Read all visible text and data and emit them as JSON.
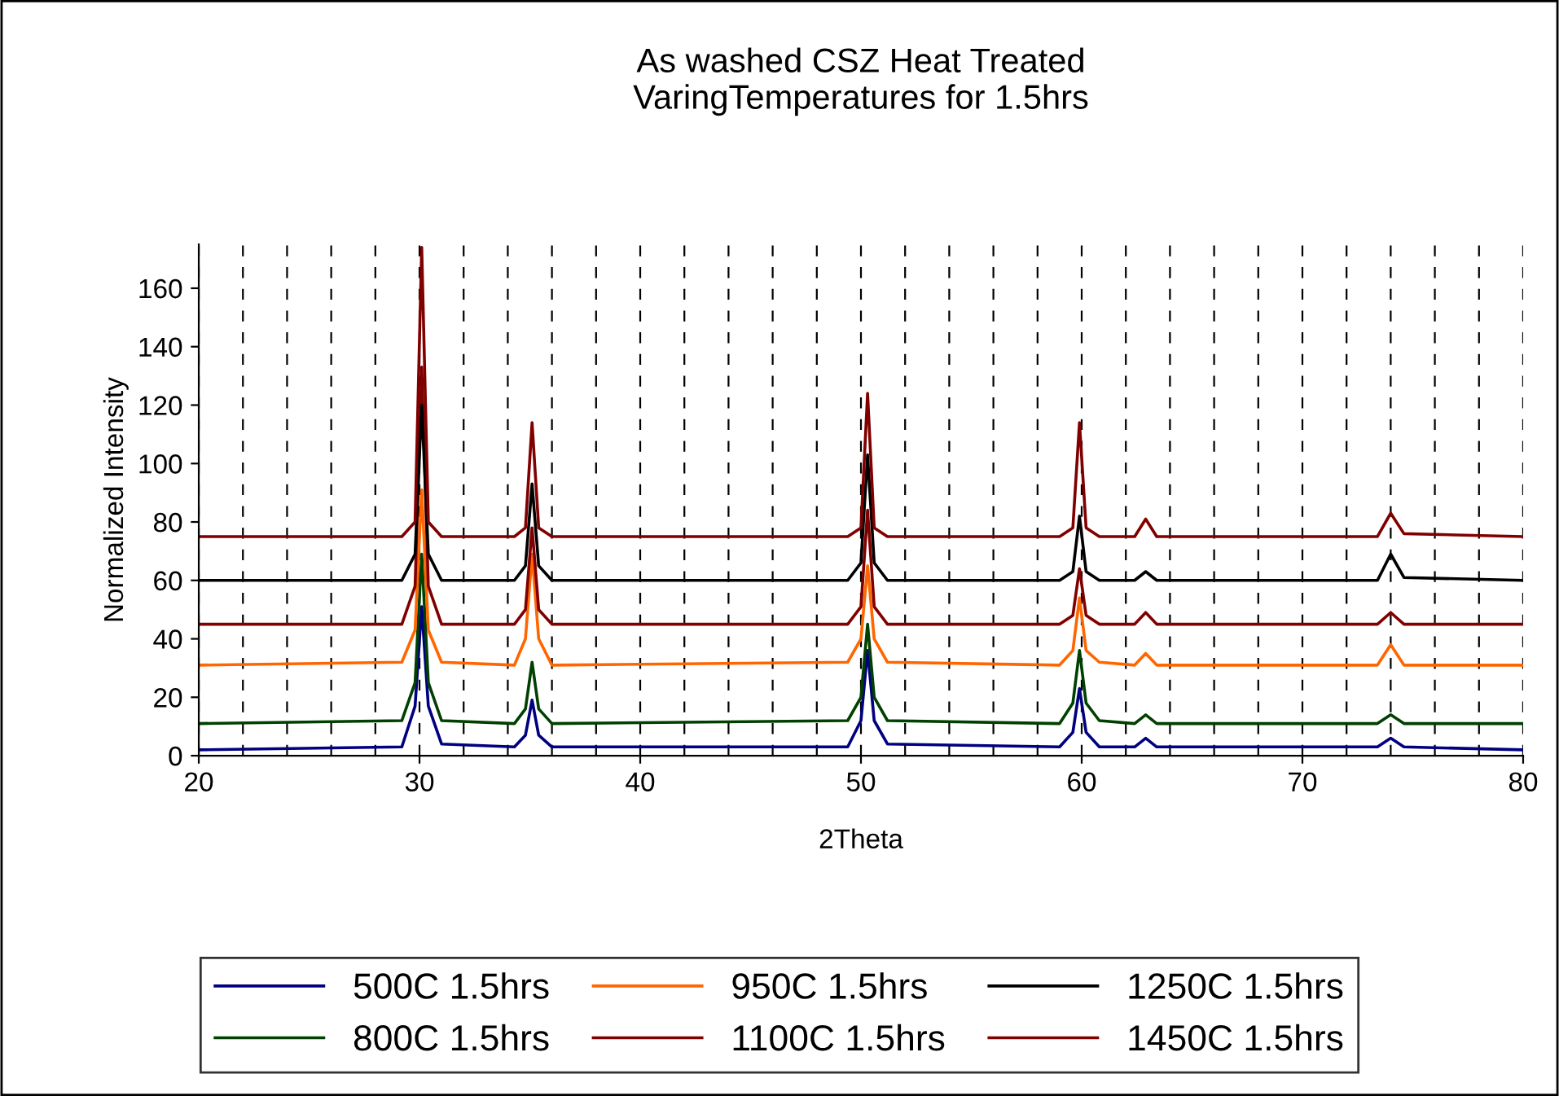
{
  "chart_data": {
    "type": "line",
    "title": "As washed CSZ Heat Treated\nVaringTemperatures for 1.5hrs",
    "xlabel": "2Theta",
    "ylabel": "Normalized Intensity",
    "x": [
      20,
      29.2,
      29.8,
      30.1,
      30.4,
      31,
      34.3,
      34.8,
      35.1,
      35.4,
      36,
      49.4,
      50,
      50.3,
      50.6,
      51.2,
      59,
      59.6,
      59.9,
      60.2,
      60.8,
      62.4,
      62.9,
      63.4,
      73.4,
      74,
      74.6,
      80
    ],
    "series": [
      {
        "name": "500C 1.5hrs",
        "color": "#000080",
        "values": [
          2,
          3,
          17,
          51,
          17,
          4,
          3,
          7,
          19,
          7,
          3,
          3,
          12,
          36,
          12,
          4,
          3,
          8,
          23,
          8,
          3,
          3,
          6,
          3,
          3,
          6,
          3,
          2
        ]
      },
      {
        "name": "800C 1.5hrs",
        "color": "#004000",
        "values": [
          11,
          12,
          25,
          69,
          25,
          12,
          11,
          16,
          32,
          16,
          11,
          12,
          20,
          45,
          20,
          12,
          11,
          18,
          36,
          18,
          12,
          11,
          14,
          11,
          11,
          14,
          11,
          11
        ]
      },
      {
        "name": "950C 1.5hrs",
        "color": "#ff6600",
        "values": [
          31,
          32,
          43,
          91,
          43,
          32,
          31,
          40,
          69,
          40,
          31,
          32,
          40,
          65,
          40,
          32,
          31,
          36,
          54,
          36,
          32,
          31,
          35,
          31,
          31,
          38,
          31,
          31
        ]
      },
      {
        "name": "1100C 1.5hrs",
        "color": "#800000",
        "values": [
          45,
          45,
          58,
          133,
          58,
          45,
          45,
          50,
          78,
          50,
          45,
          45,
          51,
          84,
          51,
          45,
          45,
          48,
          64,
          48,
          45,
          45,
          49,
          45,
          45,
          49,
          45,
          45
        ]
      },
      {
        "name": "1250C 1.5hrs",
        "color": "#000000",
        "values": [
          60,
          60,
          69,
          120,
          69,
          60,
          60,
          65,
          93,
          65,
          60,
          60,
          66,
          103,
          66,
          60,
          60,
          63,
          82,
          63,
          60,
          60,
          63,
          60,
          60,
          69,
          61,
          60
        ]
      },
      {
        "name": "1450C 1.5hrs",
        "color": "#800000",
        "values": [
          75,
          75,
          80,
          174,
          80,
          75,
          75,
          78,
          114,
          78,
          75,
          75,
          78,
          124,
          78,
          75,
          75,
          78,
          114,
          78,
          75,
          75,
          81,
          75,
          75,
          83,
          76,
          75
        ]
      }
    ],
    "xlim": [
      20,
      80
    ],
    "xticks": [
      20,
      {
        "value": 22,
        "label": null
      },
      {
        "value": 24,
        "label": null
      },
      {
        "value": 26,
        "label": null
      },
      {
        "value": 28,
        "label": null
      },
      30,
      {
        "value": 32,
        "label": null
      },
      {
        "value": 34,
        "label": null
      },
      {
        "value": 36,
        "label": null
      },
      {
        "value": 38,
        "label": null
      },
      40,
      {
        "value": 42,
        "label": null
      },
      {
        "value": 44,
        "label": null
      },
      {
        "value": 46,
        "label": null
      },
      {
        "value": 48,
        "label": null
      },
      50,
      {
        "value": 52,
        "label": null
      },
      {
        "value": 54,
        "label": null
      },
      {
        "value": 56,
        "label": null
      },
      {
        "value": 58,
        "label": null
      },
      60,
      {
        "value": 62,
        "label": null
      },
      {
        "value": 64,
        "label": null
      },
      {
        "value": 66,
        "label": null
      },
      {
        "value": 68,
        "label": null
      },
      70,
      {
        "value": 72,
        "label": null
      },
      {
        "value": 74,
        "label": null
      },
      {
        "value": 76,
        "label": null
      },
      {
        "value": 78,
        "label": null
      },
      80
    ],
    "ylim": [
      0,
      175
    ],
    "yticks": [
      0,
      20,
      40,
      60,
      80,
      100,
      120,
      140,
      160
    ],
    "grid": "x",
    "legend": "bottom",
    "marker": "none",
    "line_style": "solid"
  }
}
